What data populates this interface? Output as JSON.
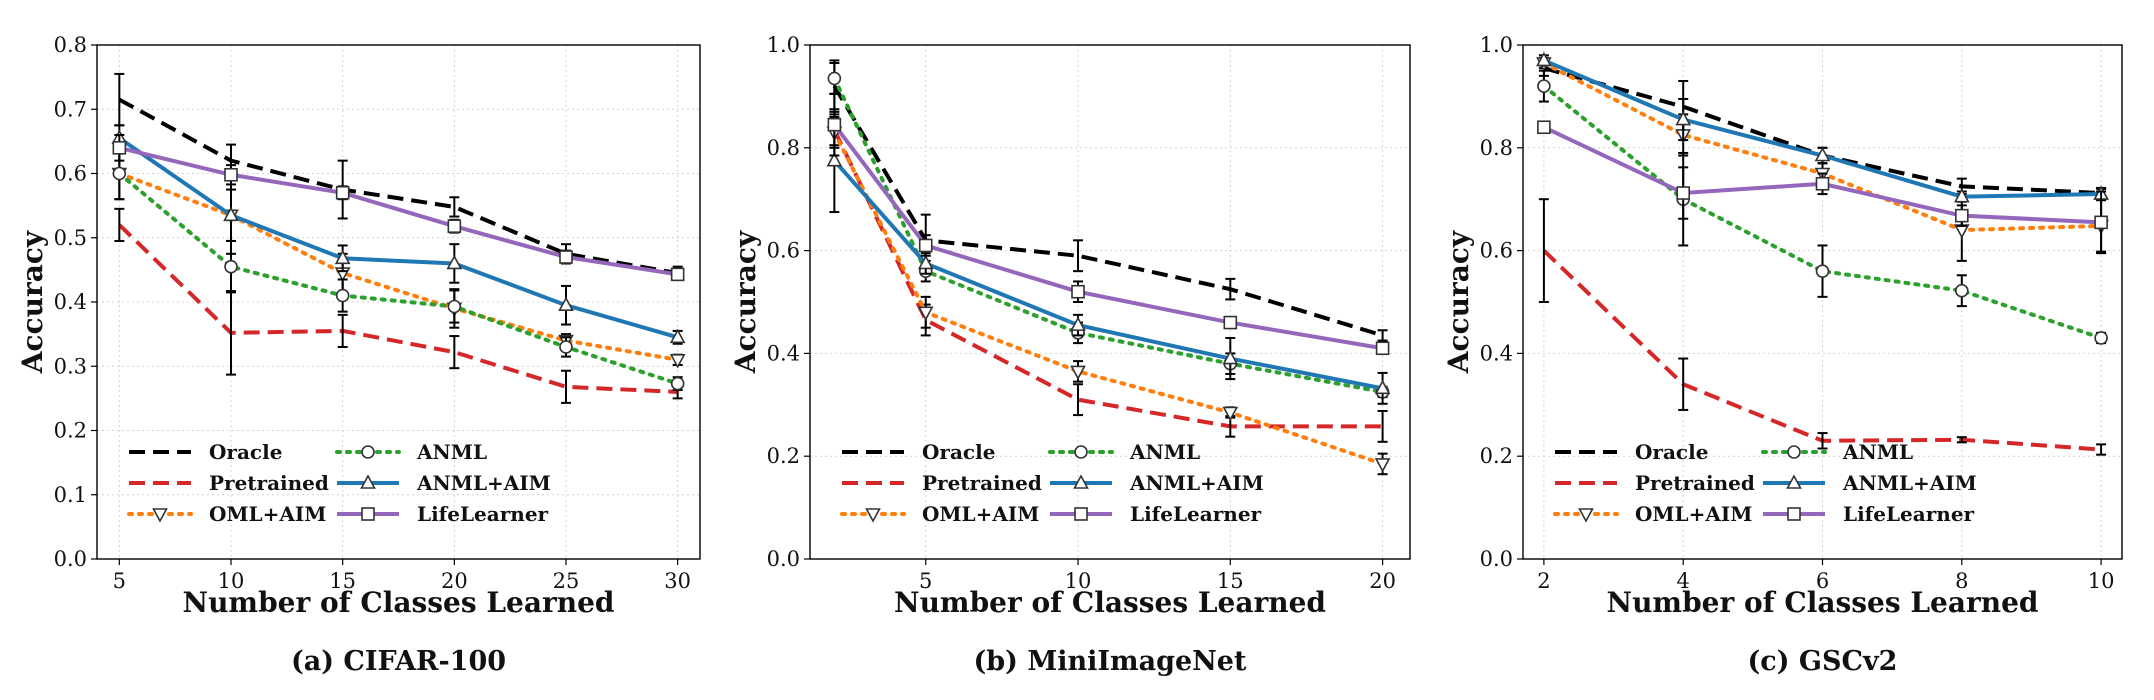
{
  "chart_data": [
    {
      "type": "line",
      "caption": "(a) CIFAR-100",
      "xlabel": "Number of Classes Learned",
      "ylabel": "Accuracy",
      "xlim": [
        4,
        31
      ],
      "ylim": [
        0.0,
        0.8
      ],
      "xticks": [
        5,
        10,
        15,
        20,
        25,
        30
      ],
      "yticks": [
        0.0,
        0.1,
        0.2,
        0.3,
        0.4,
        0.5,
        0.6,
        0.7,
        0.8
      ],
      "ytick_labels": [
        "0.0",
        "0.1",
        "0.2",
        "0.3",
        "0.4",
        "0.5",
        "0.6",
        "0.7",
        "0.8"
      ],
      "grid": true,
      "legend_position": "lower-left",
      "x": [
        5,
        10,
        15,
        20,
        25,
        30
      ],
      "series": [
        {
          "name": "Oracle",
          "values": [
            0.715,
            0.62,
            0.575,
            0.548,
            0.475,
            0.445
          ],
          "err": [
            0.04,
            0.025,
            0.045,
            0.015,
            0.015,
            0.01
          ]
        },
        {
          "name": "Pretrained",
          "values": [
            0.52,
            0.352,
            0.355,
            0.322,
            0.268,
            0.26
          ],
          "err": [
            0.025,
            0.065,
            0.025,
            0.025,
            0.025,
            0.01
          ]
        },
        {
          "name": "OML+AIM",
          "values": [
            0.6,
            0.535,
            0.445,
            0.39,
            0.34,
            0.31
          ],
          "err": [
            0.04,
            0.06,
            0.03,
            0.03,
            0.01,
            0.008
          ]
        },
        {
          "name": "ANML",
          "values": [
            0.6,
            0.455,
            0.41,
            0.393,
            0.33,
            0.273
          ],
          "err": [
            0.04,
            0.04,
            0.025,
            0.025,
            0.015,
            0.01
          ]
        },
        {
          "name": "ANML+AIM",
          "values": [
            0.655,
            0.535,
            0.468,
            0.46,
            0.395,
            0.345
          ],
          "err": [
            0.02,
            0.04,
            0.02,
            0.03,
            0.03,
            0.01
          ]
        },
        {
          "name": "LifeLearner",
          "values": [
            0.64,
            0.598,
            0.57,
            0.518,
            0.47,
            0.443
          ],
          "err": [
            0.02,
            0.015,
            0.01,
            0.01,
            0.01,
            0.008
          ]
        }
      ]
    },
    {
      "type": "line",
      "caption": "(b) MiniImageNet",
      "xlabel": "Number of Classes Learned",
      "ylabel": "Accuracy",
      "xlim": [
        1.2,
        20.9
      ],
      "ylim": [
        0.0,
        1.0
      ],
      "xticks": [
        5,
        10,
        15,
        20
      ],
      "yticks": [
        0.0,
        0.2,
        0.4,
        0.6,
        0.8,
        1.0
      ],
      "ytick_labels": [
        "0.0",
        "0.2",
        "0.4",
        "0.6",
        "0.8",
        "1.0"
      ],
      "grid": true,
      "legend_position": "lower-left",
      "x": [
        2,
        5,
        10,
        15,
        20
      ],
      "series": [
        {
          "name": "Oracle",
          "values": [
            0.92,
            0.62,
            0.59,
            0.525,
            0.435
          ],
          "err": [
            0.05,
            0.05,
            0.03,
            0.02,
            0.01
          ]
        },
        {
          "name": "Pretrained",
          "values": [
            0.835,
            0.465,
            0.31,
            0.258,
            0.258
          ],
          "err": [
            0.03,
            0.03,
            0.03,
            0.02,
            0.03
          ]
        },
        {
          "name": "OML+AIM",
          "values": [
            0.83,
            0.48,
            0.365,
            0.285,
            0.185
          ],
          "err": [
            0.03,
            0.03,
            0.02,
            0.01,
            0.02
          ]
        },
        {
          "name": "ANML",
          "values": [
            0.935,
            0.56,
            0.44,
            0.38,
            0.325
          ],
          "err": [
            0.03,
            0.02,
            0.02,
            0.02,
            0.01
          ]
        },
        {
          "name": "ANML+AIM",
          "values": [
            0.775,
            0.575,
            0.455,
            0.39,
            0.332
          ],
          "err": [
            0.1,
            0.02,
            0.02,
            0.04,
            0.03
          ]
        },
        {
          "name": "LifeLearner",
          "values": [
            0.845,
            0.61,
            0.52,
            0.46,
            0.41
          ],
          "err": [
            0.06,
            0.02,
            0.02,
            0.01,
            0.01
          ]
        }
      ]
    },
    {
      "type": "line",
      "caption": "(c) GSCv2",
      "xlabel": "Number of Classes Learned",
      "ylabel": "Accuracy",
      "xlim": [
        1.7,
        10.3
      ],
      "ylim": [
        0.0,
        1.0
      ],
      "xticks": [
        2,
        4,
        6,
        8,
        10
      ],
      "yticks": [
        0.0,
        0.2,
        0.4,
        0.6,
        0.8,
        1.0
      ],
      "ytick_labels": [
        "0.0",
        "0.2",
        "0.4",
        "0.6",
        "0.8",
        "1.0"
      ],
      "grid": true,
      "legend_position": "lower-left",
      "x": [
        2,
        4,
        6,
        8,
        10
      ],
      "series": [
        {
          "name": "Oracle",
          "values": [
            0.955,
            0.88,
            0.785,
            0.725,
            0.712
          ],
          "err": [
            0.015,
            0.05,
            0.015,
            0.015,
            0.01
          ]
        },
        {
          "name": "Pretrained",
          "values": [
            0.6,
            0.34,
            0.23,
            0.232,
            0.213
          ],
          "err": [
            0.1,
            0.05,
            0.015,
            0.005,
            0.01
          ]
        },
        {
          "name": "OML+AIM",
          "values": [
            0.965,
            0.825,
            0.75,
            0.64,
            0.648
          ],
          "err": [
            0.01,
            0.04,
            0.02,
            0.06,
            0.05
          ]
        },
        {
          "name": "ANML",
          "values": [
            0.92,
            0.7,
            0.56,
            0.522,
            0.43
          ],
          "err": [
            0.03,
            0.09,
            0.05,
            0.03,
            0.01
          ]
        },
        {
          "name": "ANML+AIM",
          "values": [
            0.97,
            0.855,
            0.785,
            0.705,
            0.71
          ],
          "err": [
            0.01,
            0.04,
            0.015,
            0.01,
            0.01
          ]
        },
        {
          "name": "LifeLearner",
          "values": [
            0.84,
            0.712,
            0.73,
            0.668,
            0.655
          ],
          "err": [
            0.005,
            0.05,
            0.02,
            0.02,
            0.06
          ]
        }
      ]
    }
  ],
  "series_styles": [
    {
      "name": "Oracle",
      "color": "#000000",
      "dash": "dashed",
      "marker": "none"
    },
    {
      "name": "Pretrained",
      "color": "#d62728",
      "dash": "dashed",
      "marker": "none"
    },
    {
      "name": "OML+AIM",
      "color": "#ff7f0e",
      "dash": "dotted",
      "marker": "triangle-down"
    },
    {
      "name": "ANML",
      "color": "#2ca02c",
      "dash": "dotted",
      "marker": "circle"
    },
    {
      "name": "ANML+AIM",
      "color": "#1f77b4",
      "dash": "solid",
      "marker": "triangle-up"
    },
    {
      "name": "LifeLearner",
      "color": "#9467bd",
      "dash": "solid",
      "marker": "square"
    }
  ]
}
